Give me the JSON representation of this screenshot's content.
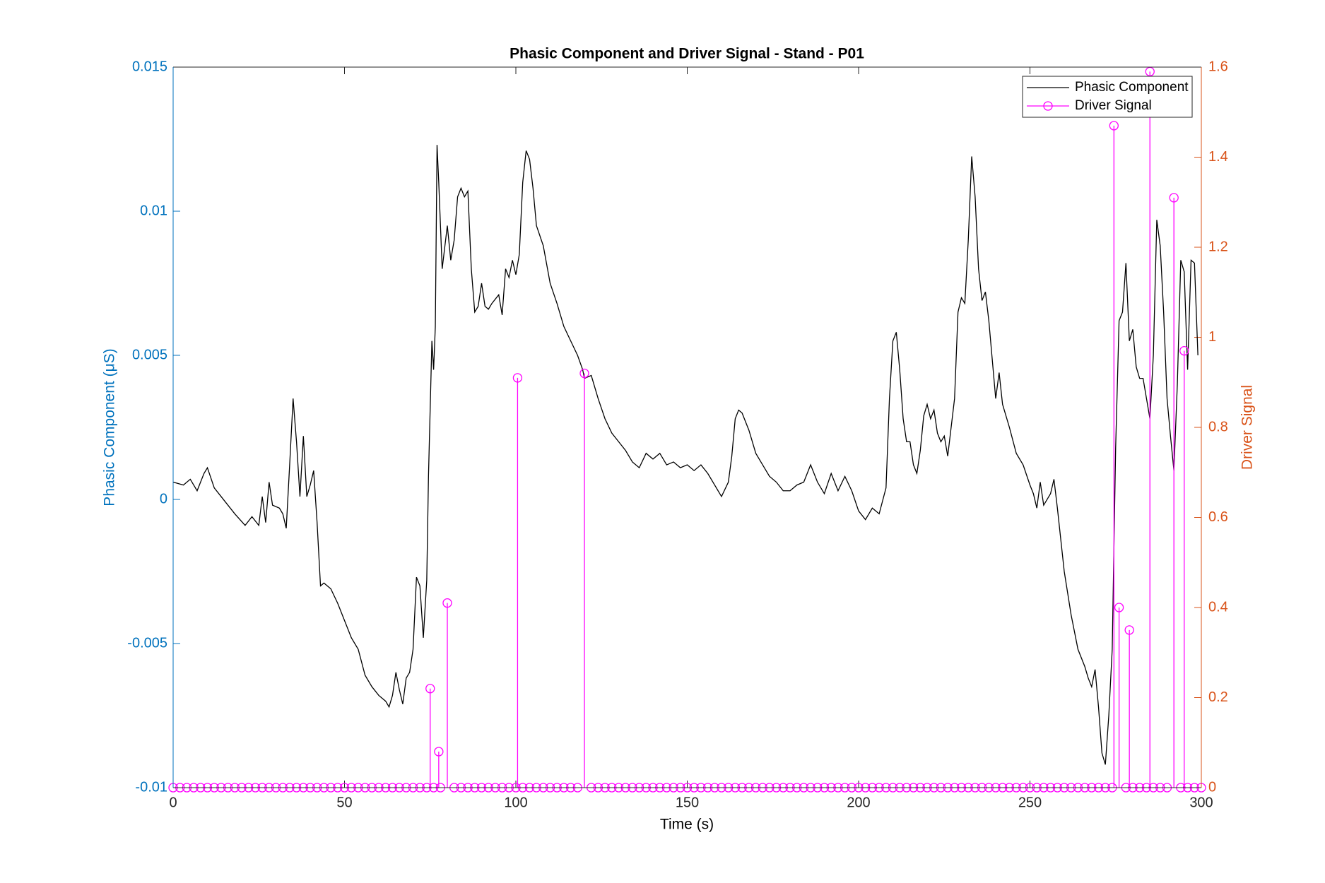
{
  "chart_data": {
    "type": "line",
    "title": "Phasic Component and Driver Signal - Stand - P01",
    "xlabel": "Time (s)",
    "ylabel": "Phasic Component (μS)",
    "y2label": "Driver Signal",
    "xlim": [
      0,
      300
    ],
    "xticks": [
      0,
      50,
      100,
      150,
      200,
      250,
      300
    ],
    "ylim": [
      -0.01,
      0.015
    ],
    "yticks": [
      -0.01,
      -0.005,
      0,
      0.005,
      0.01,
      0.015
    ],
    "y2lim": [
      0,
      1.6
    ],
    "y2ticks": [
      0,
      0.2,
      0.4,
      0.6,
      0.8,
      1,
      1.2,
      1.4,
      1.6
    ],
    "ycolor": "#0072bd",
    "y2color": "#d95319",
    "legend": "upper right",
    "series": [
      {
        "name": "Phasic Component",
        "color": "#000000",
        "type": "line",
        "x": [
          0,
          3,
          5,
          7,
          9,
          10,
          12,
          14,
          16,
          18,
          21,
          23,
          25,
          26,
          27,
          28,
          29,
          31,
          32,
          33,
          34,
          35,
          36,
          37,
          38,
          39,
          40,
          41,
          42,
          43,
          44,
          46,
          48,
          50,
          52,
          54,
          56,
          58,
          60,
          62,
          63,
          64,
          65,
          66,
          67,
          68,
          69,
          70,
          71,
          72,
          73,
          74,
          74.5,
          75.5,
          76,
          76.5,
          77,
          77.5,
          78.5,
          79,
          80,
          81,
          82,
          83,
          84,
          85,
          86,
          87,
          88,
          89,
          90,
          91,
          92,
          93,
          95,
          96,
          97,
          98,
          99,
          100,
          101,
          102,
          103,
          104,
          105,
          106,
          108,
          110,
          112,
          114,
          116,
          118,
          119.5,
          120,
          122,
          124,
          126,
          128,
          130,
          132,
          134,
          136,
          138,
          140,
          142,
          144,
          146,
          148,
          150,
          152,
          154,
          156,
          158,
          160,
          162,
          163,
          164,
          165,
          166,
          168,
          170,
          172,
          174,
          176,
          178,
          180,
          182,
          184,
          186,
          188,
          190,
          192,
          194,
          196,
          198,
          200,
          202,
          204,
          206,
          208,
          209,
          210,
          211,
          212,
          213,
          214,
          215,
          216,
          217,
          218,
          219,
          220,
          221,
          222,
          223,
          224,
          225,
          226,
          228,
          229,
          230,
          231,
          232,
          233,
          234,
          235,
          236,
          237,
          238,
          240,
          241,
          242,
          244,
          246,
          248,
          250,
          251,
          252,
          253,
          254,
          256,
          257,
          258,
          260,
          262,
          264,
          266,
          267,
          268,
          269,
          270,
          271,
          272,
          273,
          274,
          275,
          276,
          277,
          278,
          279,
          280,
          281,
          282,
          283,
          284,
          285,
          286,
          287,
          288,
          289,
          290,
          291,
          292,
          293,
          294,
          295,
          296,
          297,
          298,
          299
        ],
        "values": [
          0.0006,
          0.0005,
          0.0007,
          0.0003,
          0.0009,
          0.0011,
          0.0004,
          0.0001,
          -0.0002,
          -0.0005,
          -0.0009,
          -0.0006,
          -0.0009,
          0.0001,
          -0.0008,
          0.0006,
          -0.0002,
          -0.0003,
          -0.0005,
          -0.001,
          0.0012,
          0.0035,
          0.002,
          0.0001,
          0.0022,
          0.0001,
          0.0005,
          0.001,
          -0.0008,
          -0.003,
          -0.0029,
          -0.0031,
          -0.0036,
          -0.0042,
          -0.0048,
          -0.0052,
          -0.0061,
          -0.0065,
          -0.0068,
          -0.007,
          -0.0072,
          -0.0068,
          -0.006,
          -0.0066,
          -0.0071,
          -0.0062,
          -0.006,
          -0.0052,
          -0.0027,
          -0.003,
          -0.0048,
          -0.0028,
          0.0008,
          0.0055,
          0.0045,
          0.006,
          0.0123,
          0.011,
          0.008,
          0.0085,
          0.0095,
          0.0083,
          0.009,
          0.0105,
          0.0108,
          0.0105,
          0.0107,
          0.008,
          0.0065,
          0.0067,
          0.0075,
          0.0067,
          0.0066,
          0.0068,
          0.0071,
          0.0064,
          0.008,
          0.0077,
          0.0083,
          0.0078,
          0.0085,
          0.011,
          0.0121,
          0.0118,
          0.0108,
          0.0095,
          0.0088,
          0.0075,
          0.0068,
          0.006,
          0.0055,
          0.005,
          0.0045,
          0.0042,
          0.0043,
          0.0035,
          0.0028,
          0.0023,
          0.002,
          0.0017,
          0.0013,
          0.0011,
          0.0016,
          0.0014,
          0.0016,
          0.0012,
          0.0013,
          0.0011,
          0.0012,
          0.001,
          0.0012,
          0.0009,
          0.0005,
          0.0001,
          0.0006,
          0.0015,
          0.0028,
          0.0031,
          0.003,
          0.0024,
          0.0016,
          0.0012,
          0.0008,
          0.0006,
          0.0003,
          0.0003,
          0.0005,
          0.0006,
          0.0012,
          0.0006,
          0.0002,
          0.0009,
          0.0003,
          0.0008,
          0.0003,
          -0.0004,
          -0.0007,
          -0.0003,
          -0.0005,
          0.0004,
          0.0035,
          0.0055,
          0.0058,
          0.0045,
          0.0028,
          0.002,
          0.002,
          0.0012,
          0.0009,
          0.0017,
          0.0029,
          0.0033,
          0.0028,
          0.0031,
          0.0023,
          0.002,
          0.0022,
          0.0015,
          0.0035,
          0.0065,
          0.007,
          0.0068,
          0.009,
          0.0119,
          0.0105,
          0.008,
          0.0069,
          0.0072,
          0.0062,
          0.0035,
          0.0044,
          0.0033,
          0.0025,
          0.0016,
          0.0012,
          0.0005,
          0.0002,
          -0.0003,
          0.0006,
          -0.0002,
          0.0002,
          0.0007,
          -0.0003,
          -0.0025,
          -0.004,
          -0.0052,
          -0.0058,
          -0.0062,
          -0.0065,
          -0.0059,
          -0.0072,
          -0.0088,
          -0.0092,
          -0.0075,
          -0.0052,
          0.0018,
          0.0062,
          0.0065,
          0.0082,
          0.0055,
          0.0059,
          0.0046,
          0.0042,
          0.0042,
          0.0035,
          0.0028,
          0.005,
          0.0097,
          0.0088,
          0.0065,
          0.0035,
          0.0022,
          0.001,
          0.004,
          0.0083,
          0.0079,
          0.0045,
          0.0083,
          0.0082,
          0.005
        ]
      },
      {
        "name": "Driver Signal",
        "color": "#ff00ff",
        "type": "stem",
        "axis": "y2",
        "x": [
          0,
          2,
          4,
          6,
          8,
          10,
          12,
          14,
          16,
          18,
          20,
          22,
          24,
          26,
          28,
          30,
          32,
          34,
          36,
          38,
          40,
          42,
          44,
          46,
          48,
          50,
          52,
          54,
          56,
          58,
          60,
          62,
          64,
          66,
          68,
          70,
          72,
          74,
          75,
          76,
          77.5,
          78,
          80,
          82,
          84,
          86,
          88,
          90,
          92,
          94,
          96,
          98,
          100,
          100.5,
          102,
          104,
          106,
          108,
          110,
          112,
          114,
          116,
          118,
          120,
          122,
          124,
          126,
          128,
          130,
          132,
          134,
          136,
          138,
          140,
          142,
          144,
          146,
          148,
          150,
          152,
          154,
          156,
          158,
          160,
          162,
          164,
          166,
          168,
          170,
          172,
          174,
          176,
          178,
          180,
          182,
          184,
          186,
          188,
          190,
          192,
          194,
          196,
          198,
          200,
          202,
          204,
          206,
          208,
          210,
          212,
          214,
          216,
          218,
          220,
          222,
          224,
          226,
          228,
          230,
          232,
          234,
          236,
          238,
          240,
          242,
          244,
          246,
          248,
          250,
          252,
          254,
          256,
          258,
          260,
          262,
          264,
          266,
          268,
          270,
          272,
          274,
          274.5,
          276,
          278,
          279,
          280,
          282,
          284,
          285,
          286,
          288,
          290,
          292,
          294,
          295,
          296,
          298,
          300
        ],
        "values": [
          0,
          0,
          0,
          0,
          0,
          0,
          0,
          0,
          0,
          0,
          0,
          0,
          0,
          0,
          0,
          0,
          0,
          0,
          0,
          0,
          0,
          0,
          0,
          0,
          0,
          0,
          0,
          0,
          0,
          0,
          0,
          0,
          0,
          0,
          0,
          0,
          0,
          0,
          0.22,
          0,
          0.08,
          0,
          0.41,
          0,
          0,
          0,
          0,
          0,
          0,
          0,
          0,
          0,
          0,
          0.91,
          0,
          0,
          0,
          0,
          0,
          0,
          0,
          0,
          0,
          0.92,
          0,
          0,
          0,
          0,
          0,
          0,
          0,
          0,
          0,
          0,
          0,
          0,
          0,
          0,
          0,
          0,
          0,
          0,
          0,
          0,
          0,
          0,
          0,
          0,
          0,
          0,
          0,
          0,
          0,
          0,
          0,
          0,
          0,
          0,
          0,
          0,
          0,
          0,
          0,
          0,
          0,
          0,
          0,
          0,
          0,
          0,
          0,
          0,
          0,
          0,
          0,
          0,
          0,
          0,
          0,
          0,
          0,
          0,
          0,
          0,
          0,
          0,
          0,
          0,
          0,
          0,
          0,
          0,
          0,
          0,
          0,
          0,
          0,
          0,
          0,
          0,
          0,
          1.47,
          0.4,
          0,
          0.35,
          0,
          0,
          0,
          1.59,
          0,
          0,
          0,
          1.31,
          0,
          0.97,
          0,
          0,
          0
        ]
      }
    ]
  }
}
